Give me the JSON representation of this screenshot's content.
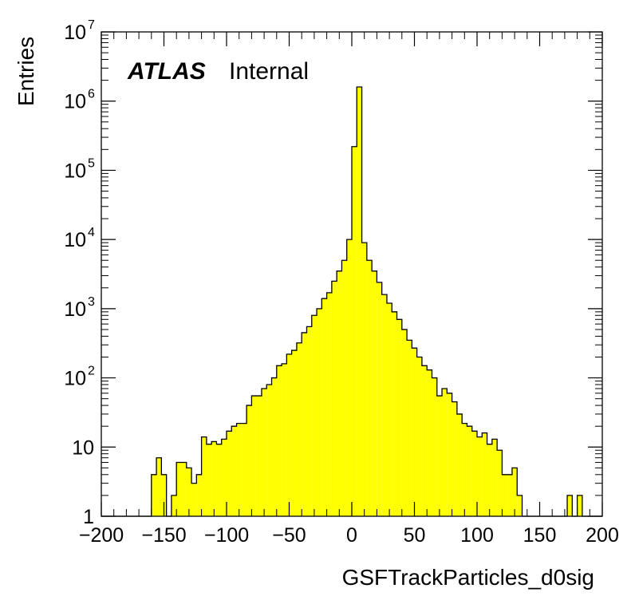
{
  "chart_data": {
    "type": "bar",
    "title": "",
    "xlabel": "GSFTrackParticles_d0sig",
    "ylabel": "Entries",
    "annotation": {
      "atlas": "ATLAS",
      "status": "Internal"
    },
    "xlim": [
      -200,
      200
    ],
    "ylim": [
      1,
      10000000
    ],
    "log_y": true,
    "bin_width": 4,
    "fill_color": "#ffff00",
    "line_color": "#000000",
    "x_ticks": [
      -200,
      -150,
      -100,
      -50,
      0,
      50,
      100,
      150,
      200
    ],
    "x_tick_labels": [
      "−200",
      "−150",
      "−100",
      "−50",
      "0",
      "50",
      "100",
      "150",
      "200"
    ],
    "y_ticks": [
      {
        "value": 1,
        "base": "1",
        "exp": ""
      },
      {
        "value": 10,
        "base": "10",
        "exp": ""
      },
      {
        "value": 100,
        "base": "10",
        "exp": "2"
      },
      {
        "value": 1000,
        "base": "10",
        "exp": "3"
      },
      {
        "value": 10000,
        "base": "10",
        "exp": "4"
      },
      {
        "value": 100000,
        "base": "10",
        "exp": "5"
      },
      {
        "value": 1000000,
        "base": "10",
        "exp": "6"
      },
      {
        "value": 10000000,
        "base": "10",
        "exp": "7"
      }
    ],
    "bins": [
      {
        "x": -200,
        "y": 1
      },
      {
        "x": -196,
        "y": 1
      },
      {
        "x": -192,
        "y": 0
      },
      {
        "x": -188,
        "y": 0
      },
      {
        "x": -184,
        "y": 0
      },
      {
        "x": -180,
        "y": 0
      },
      {
        "x": -176,
        "y": 0
      },
      {
        "x": -172,
        "y": 0
      },
      {
        "x": -168,
        "y": 1
      },
      {
        "x": -164,
        "y": 1
      },
      {
        "x": -160,
        "y": 4
      },
      {
        "x": -156,
        "y": 7
      },
      {
        "x": -152,
        "y": 4
      },
      {
        "x": -148,
        "y": 0
      },
      {
        "x": -144,
        "y": 2
      },
      {
        "x": -140,
        "y": 6
      },
      {
        "x": -136,
        "y": 6
      },
      {
        "x": -132,
        "y": 5
      },
      {
        "x": -128,
        "y": 3
      },
      {
        "x": -124,
        "y": 4
      },
      {
        "x": -120,
        "y": 14
      },
      {
        "x": -116,
        "y": 11
      },
      {
        "x": -112,
        "y": 12
      },
      {
        "x": -108,
        "y": 11
      },
      {
        "x": -104,
        "y": 13
      },
      {
        "x": -100,
        "y": 17
      },
      {
        "x": -96,
        "y": 20
      },
      {
        "x": -92,
        "y": 22
      },
      {
        "x": -88,
        "y": 22
      },
      {
        "x": -84,
        "y": 40
      },
      {
        "x": -80,
        "y": 55
      },
      {
        "x": -76,
        "y": 55
      },
      {
        "x": -72,
        "y": 70
      },
      {
        "x": -68,
        "y": 80
      },
      {
        "x": -64,
        "y": 100
      },
      {
        "x": -60,
        "y": 150
      },
      {
        "x": -56,
        "y": 160
      },
      {
        "x": -52,
        "y": 220
      },
      {
        "x": -48,
        "y": 250
      },
      {
        "x": -44,
        "y": 320
      },
      {
        "x": -40,
        "y": 450
      },
      {
        "x": -36,
        "y": 550
      },
      {
        "x": -32,
        "y": 800
      },
      {
        "x": -28,
        "y": 1000
      },
      {
        "x": -24,
        "y": 1400
      },
      {
        "x": -20,
        "y": 1700
      },
      {
        "x": -16,
        "y": 2500
      },
      {
        "x": -12,
        "y": 3500
      },
      {
        "x": -8,
        "y": 5000
      },
      {
        "x": -4,
        "y": 10000
      },
      {
        "x": 0,
        "y": 220000
      },
      {
        "x": 4,
        "y": 1600000
      },
      {
        "x": 8,
        "y": 9000
      },
      {
        "x": 12,
        "y": 5000
      },
      {
        "x": 16,
        "y": 3500
      },
      {
        "x": 20,
        "y": 2400
      },
      {
        "x": 24,
        "y": 1600
      },
      {
        "x": 28,
        "y": 1200
      },
      {
        "x": 32,
        "y": 900
      },
      {
        "x": 36,
        "y": 700
      },
      {
        "x": 40,
        "y": 500
      },
      {
        "x": 44,
        "y": 350
      },
      {
        "x": 48,
        "y": 270
      },
      {
        "x": 52,
        "y": 200
      },
      {
        "x": 56,
        "y": 150
      },
      {
        "x": 60,
        "y": 130
      },
      {
        "x": 64,
        "y": 100
      },
      {
        "x": 68,
        "y": 55
      },
      {
        "x": 72,
        "y": 70
      },
      {
        "x": 76,
        "y": 60
      },
      {
        "x": 80,
        "y": 45
      },
      {
        "x": 84,
        "y": 30
      },
      {
        "x": 88,
        "y": 22
      },
      {
        "x": 92,
        "y": 20
      },
      {
        "x": 96,
        "y": 17
      },
      {
        "x": 100,
        "y": 14
      },
      {
        "x": 104,
        "y": 16
      },
      {
        "x": 108,
        "y": 11
      },
      {
        "x": 112,
        "y": 13
      },
      {
        "x": 116,
        "y": 9
      },
      {
        "x": 120,
        "y": 4
      },
      {
        "x": 124,
        "y": 4
      },
      {
        "x": 128,
        "y": 5
      },
      {
        "x": 132,
        "y": 2
      },
      {
        "x": 136,
        "y": 0
      },
      {
        "x": 140,
        "y": 0
      },
      {
        "x": 144,
        "y": 0
      },
      {
        "x": 148,
        "y": 0
      },
      {
        "x": 152,
        "y": 1
      },
      {
        "x": 156,
        "y": 0
      },
      {
        "x": 160,
        "y": 0
      },
      {
        "x": 164,
        "y": 0
      },
      {
        "x": 168,
        "y": 1
      },
      {
        "x": 172,
        "y": 2
      },
      {
        "x": 176,
        "y": 1
      },
      {
        "x": 180,
        "y": 2
      },
      {
        "x": 184,
        "y": 0
      },
      {
        "x": 188,
        "y": 0
      },
      {
        "x": 192,
        "y": 0
      },
      {
        "x": 196,
        "y": 0
      }
    ]
  }
}
